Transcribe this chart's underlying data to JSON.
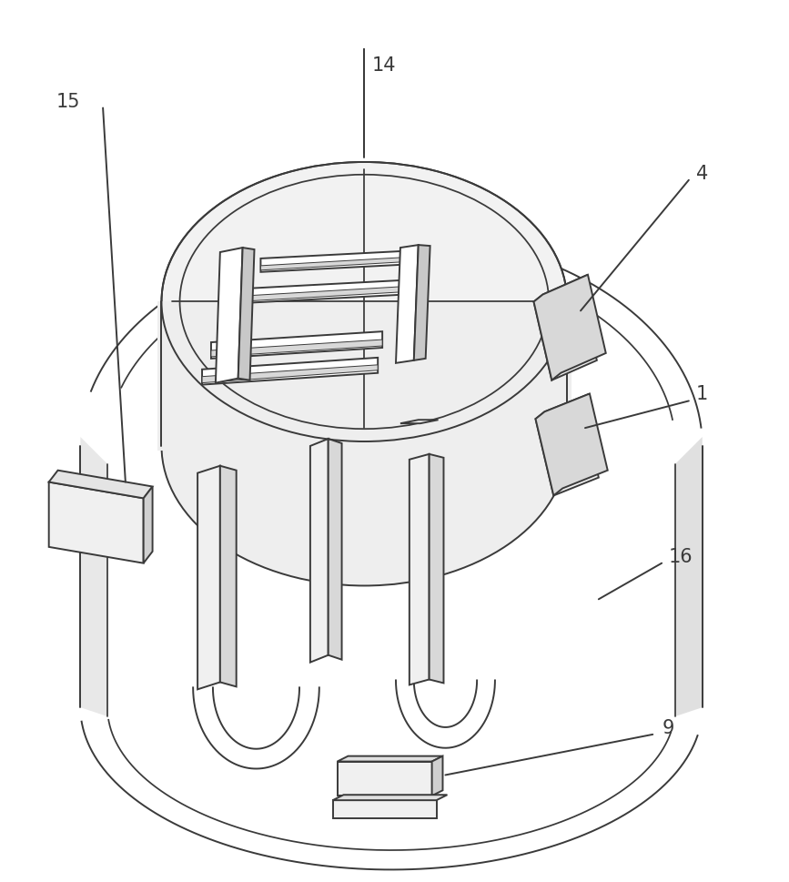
{
  "bg_color": "#ffffff",
  "line_color": "#3a3a3a",
  "line_width": 1.4,
  "fig_width": 8.67,
  "fig_height": 9.69,
  "label_fontsize": 15
}
